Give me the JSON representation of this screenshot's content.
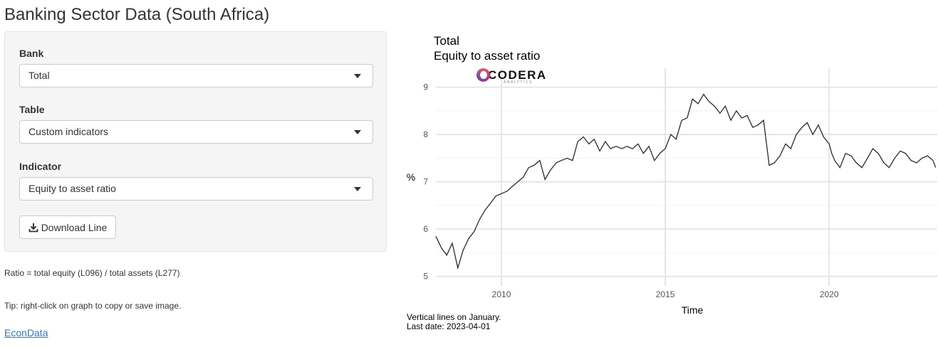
{
  "app": {
    "title": "Banking Sector Data (South Africa)"
  },
  "sidebar": {
    "bank": {
      "label": "Bank",
      "value": "Total"
    },
    "table": {
      "label": "Table",
      "value": "Custom indicators"
    },
    "indicator": {
      "label": "Indicator",
      "value": "Equity to asset ratio"
    },
    "download_label": "Download Line"
  },
  "notes": {
    "ratio": "Ratio = total equity (L096) / total assets (L277)",
    "tip": "Tip: right-click on graph to copy or save image.",
    "link": "EconData"
  },
  "logo": {
    "name": "CODERA",
    "sub": "ANALYTICS"
  },
  "chart": {
    "title": "Total",
    "subtitle": "Equity to asset ratio",
    "xlabel": "Time",
    "ylabel": "%",
    "caption1": "Vertical lines on January.",
    "caption2": "Last date: 2023-04-01"
  },
  "chart_data": {
    "type": "line",
    "title": "Total",
    "subtitle": "Equity to asset ratio",
    "xlabel": "Time",
    "ylabel": "%",
    "xlim": [
      2008.0,
      2023.3
    ],
    "ylim": [
      4.8,
      9.4
    ],
    "yticks": [
      5,
      6,
      7,
      8,
      9
    ],
    "xticks": [
      2010,
      2015,
      2020
    ],
    "grid": true,
    "series": [
      {
        "x": [
          2008.0,
          2008.17,
          2008.33,
          2008.5,
          2008.67,
          2008.83,
          2009.0,
          2009.17,
          2009.33,
          2009.5,
          2009.67,
          2009.83,
          2010.0,
          2010.17,
          2010.33,
          2010.5,
          2010.67,
          2010.83,
          2011.0,
          2011.17,
          2011.33,
          2011.5,
          2011.67,
          2011.83,
          2012.0,
          2012.17,
          2012.33,
          2012.5,
          2012.67,
          2012.83,
          2013.0,
          2013.17,
          2013.33,
          2013.5,
          2013.67,
          2013.83,
          2014.0,
          2014.17,
          2014.33,
          2014.5,
          2014.67,
          2014.83,
          2015.0,
          2015.17,
          2015.33,
          2015.5,
          2015.67,
          2015.83,
          2016.0,
          2016.17,
          2016.33,
          2016.5,
          2016.67,
          2016.83,
          2017.0,
          2017.17,
          2017.33,
          2017.5,
          2017.67,
          2017.83,
          2018.0,
          2018.17,
          2018.33,
          2018.5,
          2018.67,
          2018.83,
          2019.0,
          2019.17,
          2019.33,
          2019.5,
          2019.67,
          2019.83,
          2020.0,
          2020.08,
          2020.17,
          2020.33,
          2020.5,
          2020.67,
          2020.83,
          2021.0,
          2021.17,
          2021.33,
          2021.5,
          2021.67,
          2021.83,
          2022.0,
          2022.17,
          2022.33,
          2022.5,
          2022.67,
          2022.83,
          2023.0,
          2023.17,
          2023.25
        ],
        "y": [
          5.85,
          5.6,
          5.45,
          5.7,
          5.18,
          5.55,
          5.8,
          5.95,
          6.2,
          6.4,
          6.55,
          6.7,
          6.75,
          6.8,
          6.9,
          7.0,
          7.1,
          7.3,
          7.35,
          7.45,
          7.05,
          7.25,
          7.4,
          7.45,
          7.5,
          7.45,
          7.85,
          7.95,
          7.8,
          7.9,
          7.65,
          7.85,
          7.7,
          7.75,
          7.7,
          7.75,
          7.7,
          7.8,
          7.6,
          7.75,
          7.45,
          7.6,
          7.7,
          8.0,
          7.9,
          8.3,
          8.35,
          8.75,
          8.65,
          8.85,
          8.7,
          8.6,
          8.45,
          8.6,
          8.3,
          8.5,
          8.35,
          8.4,
          8.15,
          8.2,
          8.3,
          7.35,
          7.4,
          7.55,
          7.8,
          7.7,
          8.0,
          8.15,
          8.25,
          8.0,
          8.2,
          7.95,
          7.8,
          7.6,
          7.45,
          7.3,
          7.6,
          7.55,
          7.4,
          7.3,
          7.5,
          7.7,
          7.6,
          7.4,
          7.3,
          7.5,
          7.65,
          7.6,
          7.45,
          7.4,
          7.5,
          7.55,
          7.45,
          7.3
        ]
      }
    ]
  }
}
